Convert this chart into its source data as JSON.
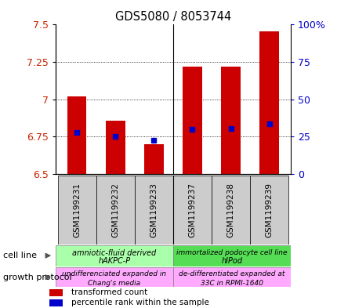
{
  "title": "GDS5080 / 8053744",
  "categories": [
    "GSM1199231",
    "GSM1199232",
    "GSM1199233",
    "GSM1199237",
    "GSM1199238",
    "GSM1199239"
  ],
  "red_values": [
    7.02,
    6.855,
    6.7,
    7.22,
    7.22,
    7.455
  ],
  "blue_values": [
    6.78,
    6.75,
    6.725,
    6.8,
    6.805,
    6.835
  ],
  "ylim": [
    6.5,
    7.5
  ],
  "y2lim": [
    0,
    100
  ],
  "yticks": [
    6.5,
    6.75,
    7.0,
    7.25,
    7.5
  ],
  "ytick_labels": [
    "6.5",
    "6.75",
    "7",
    "7.25",
    "7.5"
  ],
  "y2ticks": [
    0,
    25,
    50,
    75,
    100
  ],
  "y2tick_labels": [
    "0",
    "25",
    "50",
    "75",
    "100%"
  ],
  "bar_color": "#cc0000",
  "blue_color": "#0000cc",
  "grid_color": "#000000",
  "cell_line_g1_text1": "amniotic-fluid derived",
  "cell_line_g1_text2": "hAKPC-P",
  "cell_line_g2_text1": "immortalized podocyte cell line",
  "cell_line_g2_text2": "hIPod",
  "cell_line_color1": "#aaffaa",
  "cell_line_color2": "#55dd55",
  "growth_g1_text1": "undifferenciated expanded in",
  "growth_g1_text2": "Chang's media",
  "growth_g2_text1": "de-differentiated expanded at",
  "growth_g2_text2": "33C in RPMI-1640",
  "growth_color": "#ffaaff",
  "xtick_bg": "#cccccc",
  "legend_red": "transformed count",
  "legend_blue": "percentile rank within the sample",
  "background_color": "#ffffff",
  "plot_bg": "#ffffff",
  "tick_label_color_left": "#cc2200",
  "tick_label_color_right": "#0000cc",
  "cell_line_label": "cell line",
  "growth_label": "growth protocol",
  "bar_width": 0.5
}
